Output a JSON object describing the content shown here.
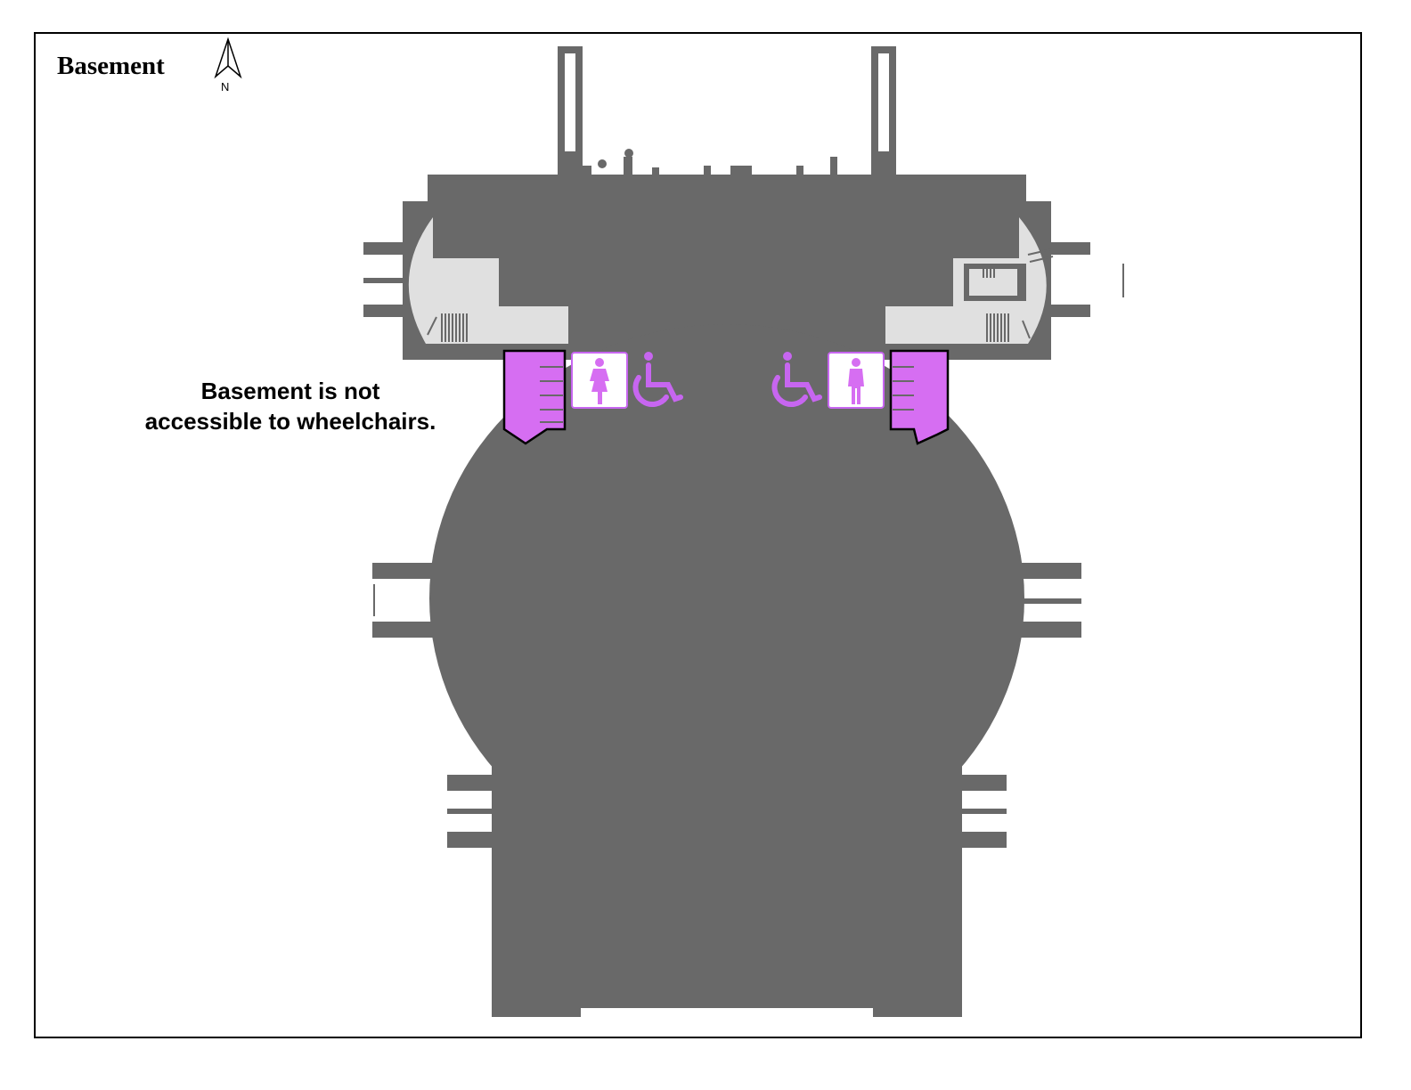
{
  "map": {
    "title": "Basement",
    "north_label": "N",
    "access_note": {
      "line1": "Basement is not",
      "line2": "accessible to wheelchairs."
    },
    "colors": {
      "building": "#696969",
      "service_area": "#e0e0e0",
      "restroom": "#d66ef2",
      "restroom_icon": "#c766f0",
      "frame": "#000000"
    },
    "icons": [
      "north-arrow-icon",
      "women-restroom-icon",
      "men-restroom-icon",
      "wheelchair-accessible-icon"
    ]
  }
}
